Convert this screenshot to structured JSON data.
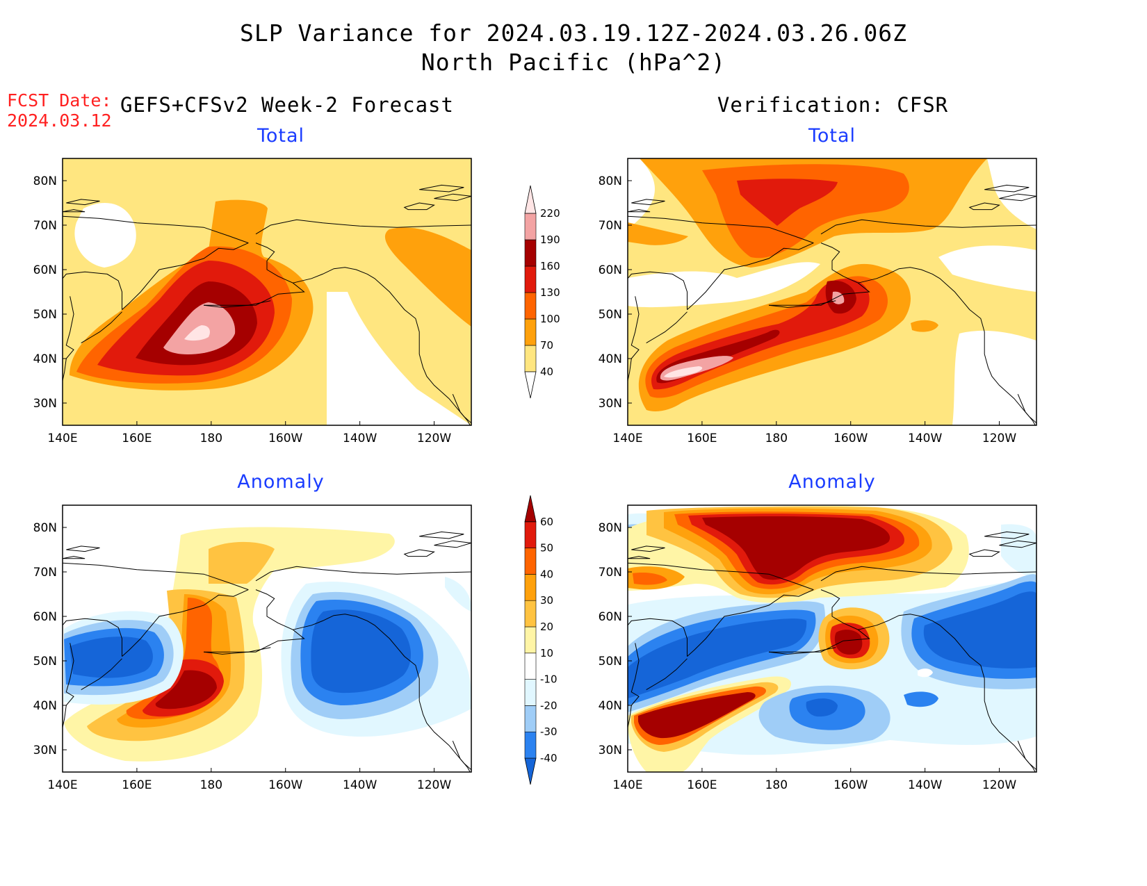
{
  "title": {
    "line1": "SLP Variance for 2024.03.19.12Z-2024.03.26.06Z",
    "line2": "North Pacific (hPa^2)"
  },
  "fcst_date": {
    "label": "FCST Date:",
    "value": "2024.03.12"
  },
  "columns": {
    "left": "GEFS+CFSv2 Week-2 Forecast",
    "right": "Verification: CFSR"
  },
  "panels": {
    "forecast_total": "Total",
    "verif_total": "Total",
    "forecast_anomaly": "Anomaly",
    "verif_anomaly": "Anomaly"
  },
  "axes": {
    "lon_labels": [
      "140E",
      "160E",
      "180",
      "160W",
      "140W",
      "120W"
    ],
    "lat_labels": [
      "80N",
      "70N",
      "60N",
      "50N",
      "40N",
      "30N"
    ],
    "lon_range": [
      140,
      250
    ],
    "lat_range": [
      25,
      85
    ]
  },
  "colorbars": {
    "total": {
      "levels": [
        "40",
        "70",
        "100",
        "130",
        "160",
        "190",
        "220"
      ],
      "colors": [
        "#ffe680",
        "#ffa10c",
        "#ff6400",
        "#e11a0c",
        "#a50000",
        "#f3a3a3",
        "#ffe5e5"
      ]
    },
    "anomaly": {
      "levels": [
        "-40",
        "-30",
        "-20",
        "-10",
        "10",
        "20",
        "30",
        "40",
        "50",
        "60"
      ],
      "colors": [
        "#1565d8",
        "#2b82f0",
        "#9fcdf7",
        "#e1f7ff",
        "#ffffff",
        "#fff5a6",
        "#ffc341",
        "#ffa10c",
        "#ff6400",
        "#e11a0c",
        "#a50000"
      ]
    }
  }
}
